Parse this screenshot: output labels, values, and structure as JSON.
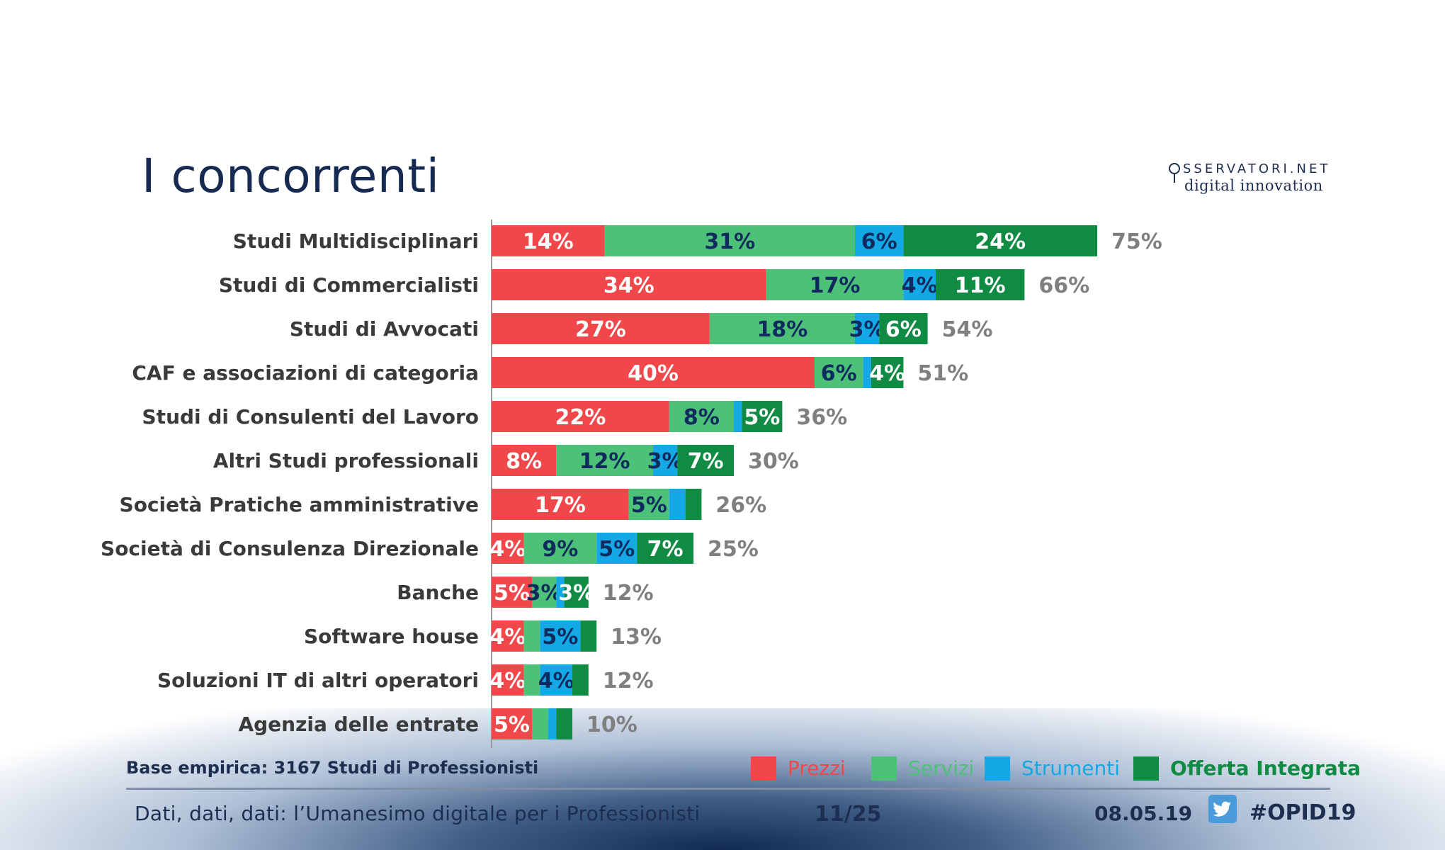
{
  "slide": {
    "title": "I concorrenti",
    "logo_top": "SSERVATORI.NET",
    "logo_bottom": "digital innovation",
    "base": "Base empirica: 3167 Studi di Professionisti",
    "footer_text": "Dati, dati, dati: l’Umanesimo digitale per i Professionisti",
    "page": "11/25",
    "date": "08.05.19",
    "hashtag": "#OPID19"
  },
  "colors": {
    "prezzi": "#f0484a",
    "servizi": "#4cc177",
    "strumenti": "#14a8e6",
    "offerta": "#108b44",
    "label_light": "#ffffff",
    "label_dark": "#0f2b5e"
  },
  "chart_data": {
    "type": "bar",
    "orientation": "horizontal",
    "stacked": true,
    "categories": [
      "Studi Multidisciplinari",
      "Studi di Commercialisti",
      "Studi di Avvocati",
      "CAF e associazioni di categoria",
      "Studi di Consulenti del Lavoro",
      "Altri Studi professionali",
      "Società Pratiche amministrative",
      "Società di Consulenza Direzionale",
      "Banche",
      "Software house",
      "Soluzioni IT di altri operatori",
      "Agenzia delle entrate"
    ],
    "series": [
      {
        "name": "Prezzi",
        "values": [
          14,
          34,
          27,
          40,
          22,
          8,
          17,
          4,
          5,
          4,
          4,
          5
        ],
        "labels": [
          "14%",
          "34%",
          "27%",
          "40%",
          "22%",
          "8%",
          "17%",
          "4%",
          "5%",
          "4%",
          "4%",
          "5%"
        ]
      },
      {
        "name": "Servizi",
        "values": [
          31,
          17,
          18,
          6,
          8,
          12,
          5,
          9,
          3,
          2,
          2,
          2
        ],
        "labels": [
          "31%",
          "17%",
          "18%",
          "6%",
          "8%",
          "12%",
          "5%",
          "9%",
          "3%",
          "",
          "",
          ""
        ]
      },
      {
        "name": "Strumenti",
        "values": [
          6,
          4,
          3,
          1,
          1,
          3,
          2,
          5,
          1,
          5,
          4,
          1
        ],
        "labels": [
          "6%",
          "4%",
          "3%",
          "",
          "",
          "3%",
          "",
          "5%",
          "",
          "5%",
          "4%",
          ""
        ]
      },
      {
        "name": "Offerta Integrata",
        "values": [
          24,
          11,
          6,
          4,
          5,
          7,
          2,
          7,
          3,
          2,
          2,
          2
        ],
        "labels": [
          "24%",
          "11%",
          "6%",
          "4%",
          "5%",
          "7%",
          "",
          "7%",
          "3%",
          "",
          "",
          ""
        ]
      }
    ],
    "totals": [
      "75%",
      "66%",
      "54%",
      "51%",
      "36%",
      "30%",
      "26%",
      "25%",
      "12%",
      "13%",
      "12%",
      "10%"
    ],
    "xlim": [
      0,
      75
    ],
    "legend": [
      "Prezzi",
      "Servizi",
      "Strumenti",
      "Offerta Integrata"
    ],
    "legend_position": "bottom-right"
  }
}
